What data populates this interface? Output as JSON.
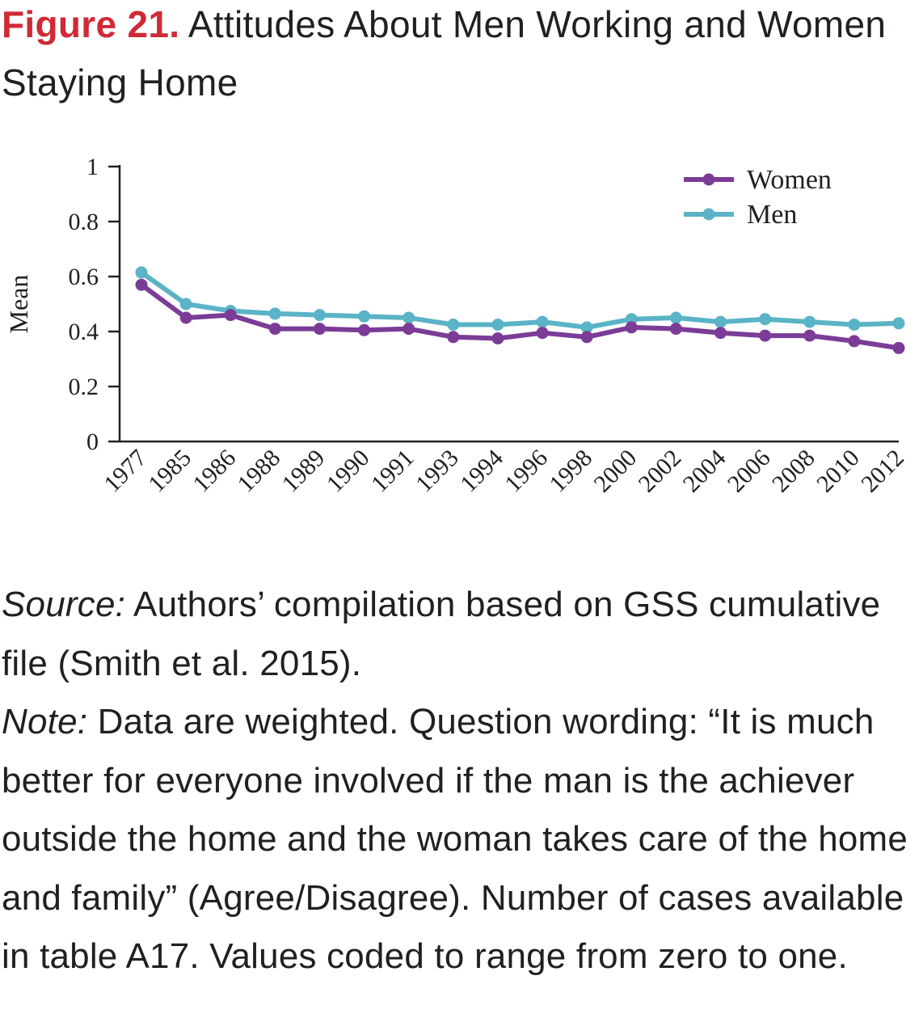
{
  "figure": {
    "label": "Figure 21.",
    "title": "Attitudes About Men Working and Women Staying Home"
  },
  "chart_data": {
    "type": "line",
    "x": [
      "1977",
      "1985",
      "1986",
      "1988",
      "1989",
      "1990",
      "1991",
      "1993",
      "1994",
      "1996",
      "1998",
      "2000",
      "2002",
      "2004",
      "2006",
      "2008",
      "2010",
      "2012"
    ],
    "series": [
      {
        "name": "Women",
        "color": "#7b3c98",
        "values": [
          0.57,
          0.45,
          0.46,
          0.41,
          0.41,
          0.405,
          0.41,
          0.38,
          0.375,
          0.395,
          0.38,
          0.415,
          0.41,
          0.395,
          0.385,
          0.385,
          0.365,
          0.34
        ]
      },
      {
        "name": "Men",
        "color": "#5ab3c6",
        "values": [
          0.615,
          0.5,
          0.475,
          0.465,
          0.46,
          0.455,
          0.45,
          0.425,
          0.425,
          0.435,
          0.415,
          0.445,
          0.45,
          0.435,
          0.445,
          0.435,
          0.425,
          0.43
        ]
      }
    ],
    "ylabel": "Mean",
    "xlabel": "",
    "ylim": [
      0,
      1
    ],
    "yticks": [
      0,
      0.2,
      0.4,
      0.6,
      0.8,
      1
    ],
    "ytick_labels": [
      "0",
      "0.2",
      "0.4",
      "0.6",
      "0.8",
      "1"
    ],
    "grid": false,
    "legend": "top-right"
  },
  "caption": {
    "source_label": "Source:",
    "source_text": " Authors’ compilation based on GSS cumulative file (Smith et al. 2015).",
    "note_label": "Note:",
    "note_text": " Data are weighted. Question wording: “It is much better for everyone involved if the man is the achiever outside the home and the woman takes care of the home and family” (Agree/Disagree). Number of cases available in table A17. Values coded to range from zero to one."
  }
}
